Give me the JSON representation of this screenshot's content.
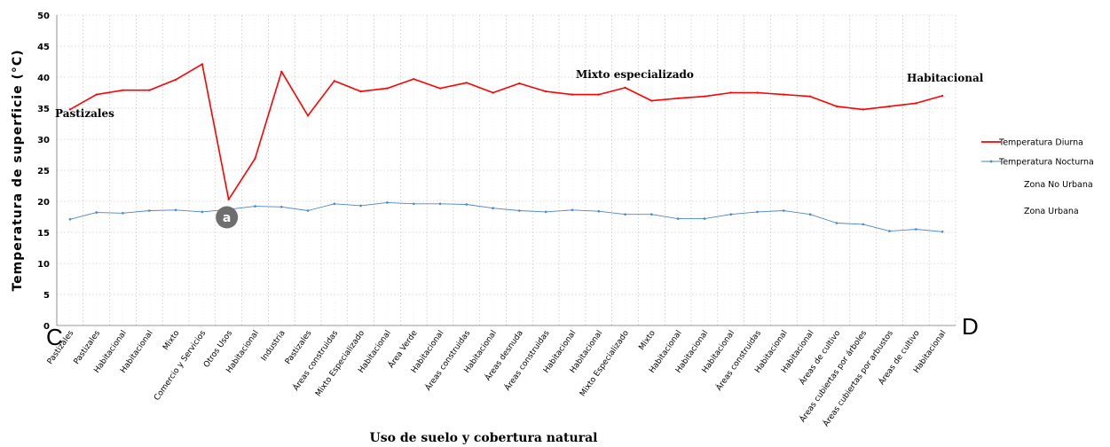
{
  "chart_data": {
    "type": "line",
    "ylabel": "Temperatura de superficie (°C)",
    "xlabel": "Uso de suelo y cobertura natural",
    "ylim": [
      0,
      50
    ],
    "yticks": [
      0,
      5,
      10,
      15,
      20,
      25,
      30,
      35,
      40,
      45,
      50
    ],
    "grid": true,
    "legend_position": "right",
    "categories": [
      "Pastizales",
      "Pastizales",
      "Habitacional",
      "Habitacional",
      "Mixto",
      "Comercio y Servicios",
      "Otros Usos",
      "Habitacional",
      "Industria",
      "Pastizales",
      "Áreas construidas",
      "Mixto Especializado",
      "Habitacional",
      "Área Verde",
      "Habitacional",
      "Áreas construidas",
      "Habitacional",
      "Áreas desnuda",
      "Áreas construidas",
      "Habitacional",
      "Habitacional",
      "Mixto Especializado",
      "Mixto",
      "Habitacional",
      "Habitacional",
      "Habitacional",
      "Áreas construidas",
      "Habitacional",
      "Habitacional",
      "Áreas de cultivo",
      "Áreas cubiertas por árboles",
      "Áreas cubiertas por arbustos",
      "Áreas de cultivo",
      "Habitacional"
    ],
    "series": [
      {
        "name": "Temperatura Diurna",
        "color": "#ff0000",
        "values": [
          34.8,
          37.2,
          37.9,
          37.9,
          39.6,
          42.1,
          20.3,
          26.9,
          40.9,
          33.8,
          39.4,
          37.7,
          38.2,
          39.7,
          38.2,
          39.1,
          37.5,
          39.0,
          37.7,
          37.2,
          37.2,
          38.3,
          36.2,
          36.6,
          36.9,
          37.5,
          37.5,
          37.2,
          36.9,
          35.3,
          34.8,
          35.3,
          35.8,
          37.0
        ]
      },
      {
        "name": "Temperatura Nocturna",
        "color": "#4a86c8",
        "values": [
          17.1,
          18.2,
          18.1,
          18.5,
          18.6,
          18.3,
          18.7,
          19.2,
          19.1,
          18.5,
          19.6,
          19.3,
          19.8,
          19.6,
          19.6,
          19.5,
          18.9,
          18.5,
          18.3,
          18.6,
          18.4,
          17.9,
          17.9,
          17.2,
          17.2,
          17.9,
          18.3,
          18.5,
          17.9,
          16.5,
          16.3,
          15.2,
          15.5,
          15.1
        ]
      }
    ],
    "annotations": [
      {
        "text": "Pastizales",
        "x_index": 0,
        "y": 34.8
      },
      {
        "text": "Mixto especializado",
        "x_index": 20,
        "y": 40.0
      },
      {
        "text": "Habitacional",
        "x_index": 33,
        "y": 39.0
      }
    ],
    "marker": {
      "text": "a",
      "x_index": 6,
      "y": 18.0,
      "color": "#6e6e6e"
    },
    "corner_labels": {
      "left": "C",
      "right": "D"
    },
    "legend_extra": [
      "Zona No Urbana",
      "Zona Urbana"
    ]
  }
}
